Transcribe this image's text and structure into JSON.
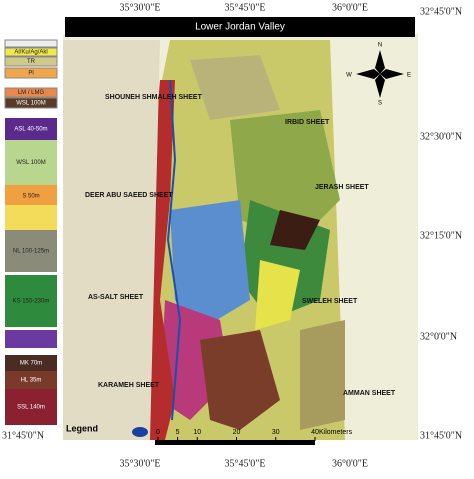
{
  "title": "Lower Jordan Valley",
  "coordinates": {
    "top": [
      "35°30'0\"E",
      "35°45'0\"E",
      "36°0'0\"E"
    ],
    "bottom": [
      "35°30'0\"E",
      "35°45'0\"E",
      "36°0'0\"E"
    ],
    "right": [
      "32°45'0\"N",
      "32°30'0\"N",
      "32°15'0\"N",
      "32°0'0\"N",
      "31°45'0\"N"
    ],
    "left": [
      "31°45'0\"N"
    ]
  },
  "legend": {
    "title": "Legend",
    "units": [
      "Al/Ku/Ag/Akl",
      "TR",
      "Pl",
      "LM / LMG",
      "WSL 100M",
      "ASL 40-50m",
      "WSL 100M",
      "S 50m",
      "NL 100-125m",
      "KS 150-230m",
      "MK 70m",
      "HL 35m",
      "SSL 140m"
    ]
  },
  "sheets": [
    "SHOUNEH SHMALEH SHEET",
    "IRBID SHEET",
    "DEER ABU SAEED SHEET",
    "JERASH SHEET",
    "AS-SALT SHEET",
    "SWELEH SHEET",
    "KARAMEH SHEET",
    "AMMAN SHEET"
  ],
  "compass": {
    "north": "N",
    "east": "E",
    "south": "S",
    "west": "W"
  },
  "scale": {
    "ticks": [
      0,
      5,
      10,
      20,
      30,
      40
    ],
    "unit": "Kilometers"
  }
}
